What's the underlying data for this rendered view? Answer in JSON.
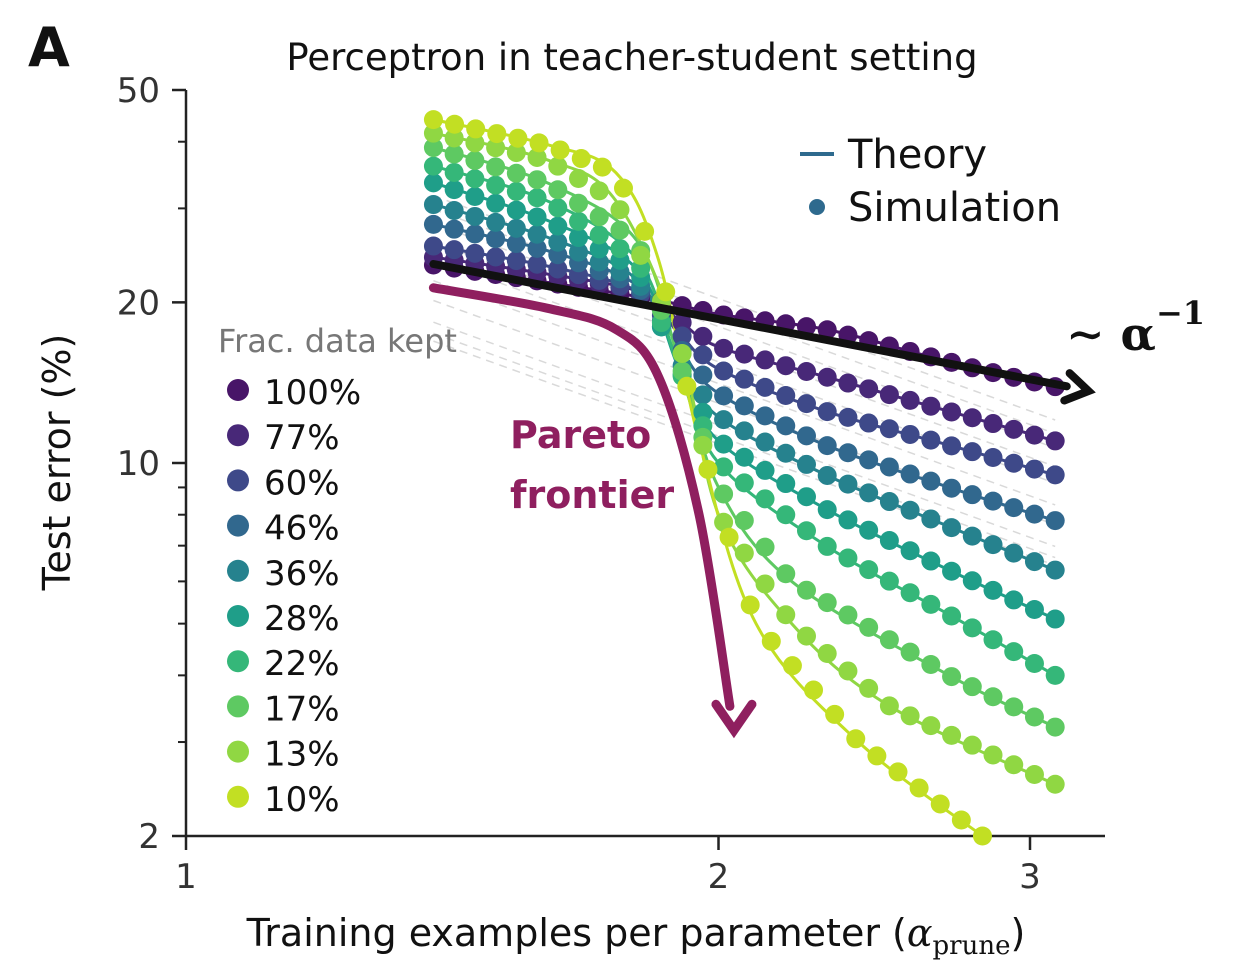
{
  "panel_label": "A",
  "chart_data": {
    "type": "line",
    "title": "Perceptron in teacher-student setting",
    "xlabel": "Training examples per parameter (",
    "xlabel_math_base": "α",
    "xlabel_math_sub": "prune",
    "xlabel_close": ")",
    "ylabel": "Test error (%)",
    "x_scale": "log",
    "y_scale": "log",
    "xlim": [
      1,
      3.2
    ],
    "ylim": [
      2,
      50
    ],
    "x_ticks": [
      {
        "value": 1,
        "label": "1"
      },
      {
        "value": 2,
        "label": "2"
      },
      {
        "value": 3,
        "label": "3"
      }
    ],
    "y_ticks": [
      {
        "value": 2,
        "label": "2"
      },
      {
        "value": 10,
        "label": "10"
      },
      {
        "value": 20,
        "label": "20"
      },
      {
        "value": 50,
        "label": "50"
      }
    ],
    "y_minor_ticks": [
      3,
      4,
      5,
      6,
      7,
      8,
      9,
      30,
      40
    ],
    "grid": false,
    "legend_style": {
      "position": "upper-right",
      "entries": [
        {
          "label": "Theory",
          "marker": "line",
          "color": "#2e6a8e"
        },
        {
          "label": "Simulation",
          "marker": "dot",
          "color": "#2e6a8e"
        }
      ]
    },
    "legend_fraction": {
      "title": "Frac. data kept",
      "position": "left"
    },
    "series": [
      {
        "name": "100%",
        "color": "#481568",
        "x_start": 1.38,
        "x_end": 3.1,
        "points": [
          [
            1.38,
            23.5
          ],
          [
            1.6,
            21.8
          ],
          [
            1.85,
            20.2
          ],
          [
            2.0,
            19.0
          ],
          [
            2.3,
            17.8
          ],
          [
            2.6,
            16.0
          ],
          [
            2.8,
            15.0
          ],
          [
            3.1,
            13.9
          ]
        ]
      },
      {
        "name": "77%",
        "color": "#482878",
        "x_start": 1.38,
        "x_end": 3.1,
        "points": [
          [
            1.38,
            24.3
          ],
          [
            1.6,
            22.6
          ],
          [
            1.8,
            21.0
          ],
          [
            1.9,
            18.5
          ],
          [
            2.0,
            16.5
          ],
          [
            2.3,
            14.5
          ],
          [
            2.7,
            12.5
          ],
          [
            3.1,
            11.0
          ]
        ]
      },
      {
        "name": "60%",
        "color": "#3e4989",
        "x_start": 1.38,
        "x_end": 3.1,
        "points": [
          [
            1.38,
            25.5
          ],
          [
            1.6,
            23.4
          ],
          [
            1.8,
            21.0
          ],
          [
            1.9,
            17.5
          ],
          [
            2.0,
            15.0
          ],
          [
            2.3,
            12.5
          ],
          [
            2.7,
            10.8
          ],
          [
            3.1,
            9.5
          ]
        ]
      },
      {
        "name": "46%",
        "color": "#31688e",
        "x_start": 1.38,
        "x_end": 3.1,
        "points": [
          [
            1.38,
            28.0
          ],
          [
            1.6,
            25.0
          ],
          [
            1.8,
            21.5
          ],
          [
            1.9,
            16.5
          ],
          [
            2.0,
            13.5
          ],
          [
            2.3,
            10.8
          ],
          [
            2.7,
            9.0
          ],
          [
            3.1,
            7.8
          ]
        ]
      },
      {
        "name": "36%",
        "color": "#26828e",
        "x_start": 1.38,
        "x_end": 3.1,
        "points": [
          [
            1.38,
            30.5
          ],
          [
            1.6,
            26.5
          ],
          [
            1.8,
            22.0
          ],
          [
            1.9,
            15.5
          ],
          [
            2.0,
            12.2
          ],
          [
            2.3,
            9.5
          ],
          [
            2.7,
            7.6
          ],
          [
            3.1,
            6.3
          ]
        ]
      },
      {
        "name": "28%",
        "color": "#1f9e89",
        "x_start": 1.38,
        "x_end": 3.1,
        "points": [
          [
            1.38,
            33.5
          ],
          [
            1.6,
            28.5
          ],
          [
            1.8,
            23.0
          ],
          [
            1.9,
            15.0
          ],
          [
            2.0,
            11.0
          ],
          [
            2.3,
            8.2
          ],
          [
            2.7,
            6.3
          ],
          [
            3.1,
            5.1
          ]
        ]
      },
      {
        "name": "22%",
        "color": "#35b779",
        "x_start": 1.38,
        "x_end": 3.1,
        "points": [
          [
            1.38,
            36.0
          ],
          [
            1.6,
            31.0
          ],
          [
            1.8,
            24.0
          ],
          [
            1.9,
            15.0
          ],
          [
            2.0,
            10.0
          ],
          [
            2.3,
            7.0
          ],
          [
            2.7,
            5.2
          ],
          [
            3.1,
            4.0
          ]
        ]
      },
      {
        "name": "17%",
        "color": "#5ec962",
        "x_start": 1.38,
        "x_end": 3.1,
        "points": [
          [
            1.38,
            39.0
          ],
          [
            1.6,
            33.5
          ],
          [
            1.8,
            26.0
          ],
          [
            1.9,
            15.5
          ],
          [
            2.0,
            9.0
          ],
          [
            2.2,
            6.0
          ],
          [
            2.7,
            4.0
          ],
          [
            3.1,
            3.2
          ]
        ]
      },
      {
        "name": "13%",
        "color": "#90d743",
        "x_start": 1.38,
        "x_end": 3.1,
        "points": [
          [
            1.38,
            41.5
          ],
          [
            1.6,
            37.0
          ],
          [
            1.75,
            31.0
          ],
          [
            1.9,
            17.0
          ],
          [
            2.0,
            8.0
          ],
          [
            2.2,
            5.0
          ],
          [
            2.5,
            3.5
          ],
          [
            3.1,
            2.5
          ]
        ]
      },
      {
        "name": "10%",
        "color": "#c2df23",
        "x_start": 1.38,
        "x_end": 2.82,
        "points": [
          [
            1.38,
            44.0
          ],
          [
            1.6,
            39.5
          ],
          [
            1.75,
            35.0
          ],
          [
            1.85,
            24.0
          ],
          [
            1.95,
            11.0
          ],
          [
            2.1,
            5.0
          ],
          [
            2.4,
            3.0
          ],
          [
            2.82,
            2.0
          ]
        ]
      }
    ],
    "annotations": [
      {
        "text": "Pareto",
        "color": "#8f1f5f"
      },
      {
        "text": "frontier",
        "color": "#8f1f5f"
      },
      {
        "text": "∼ α",
        "superscript": "−1",
        "color": "#111111"
      }
    ],
    "pareto_frontier": {
      "color": "#8f1f5f",
      "points": [
        [
          1.38,
          21.3
        ],
        [
          1.6,
          19.5
        ],
        [
          1.75,
          17.8
        ],
        [
          1.85,
          14.5
        ],
        [
          1.95,
          8.0
        ],
        [
          2.03,
          3.5
        ]
      ]
    },
    "power_law_line": {
      "color": "#111111",
      "points": [
        [
          1.38,
          23.6
        ],
        [
          3.18,
          13.8
        ]
      ]
    }
  }
}
